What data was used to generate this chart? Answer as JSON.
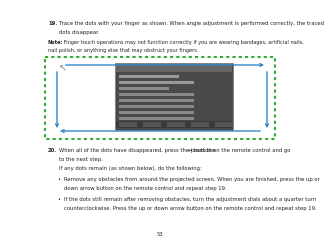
{
  "bg_color": "#ffffff",
  "text_color": "#222222",
  "step19_num": "19.",
  "step19_line1": "Trace the dots with your finger as shown. When angle adjustment is performed correctly, the traced",
  "step19_line2": "dots disappear.",
  "note_bold": "Note:",
  "note_text": " Finger touch operations may not function correctly if you are wearing bandages, artificial nails,",
  "note_line2": "nail polish, or anything else that may obstruct your fingers.",
  "border_dot_color": "#33aa33",
  "arrow_color": "#3388cc",
  "screen_bg": "#4a4a4a",
  "screen_title_color": "#cccccc",
  "step20_num": "20.",
  "step20_line1a": "When all of the dots have disappeared, press the press the",
  "step20_line1b": "button on the remote control and go",
  "step20_line2": "to the next step.",
  "step20_line3": "If any dots remain (as shown below), do the following:",
  "bullet1_line1": "Remove any obstacles from around the projected screen. When you are finished, press the up or",
  "bullet1_line2": "down arrow button on the remote control and repeat step 19.",
  "bullet2_line1": "If the dots still remain after removing obstacles, turn the adjustment dials about a quarter turn",
  "bullet2_line2": "counterclockwise. Press the up or down arrow button on the remote control and repeat step 19.",
  "page_num": "53",
  "fs": 3.8,
  "fs_note": 3.6
}
